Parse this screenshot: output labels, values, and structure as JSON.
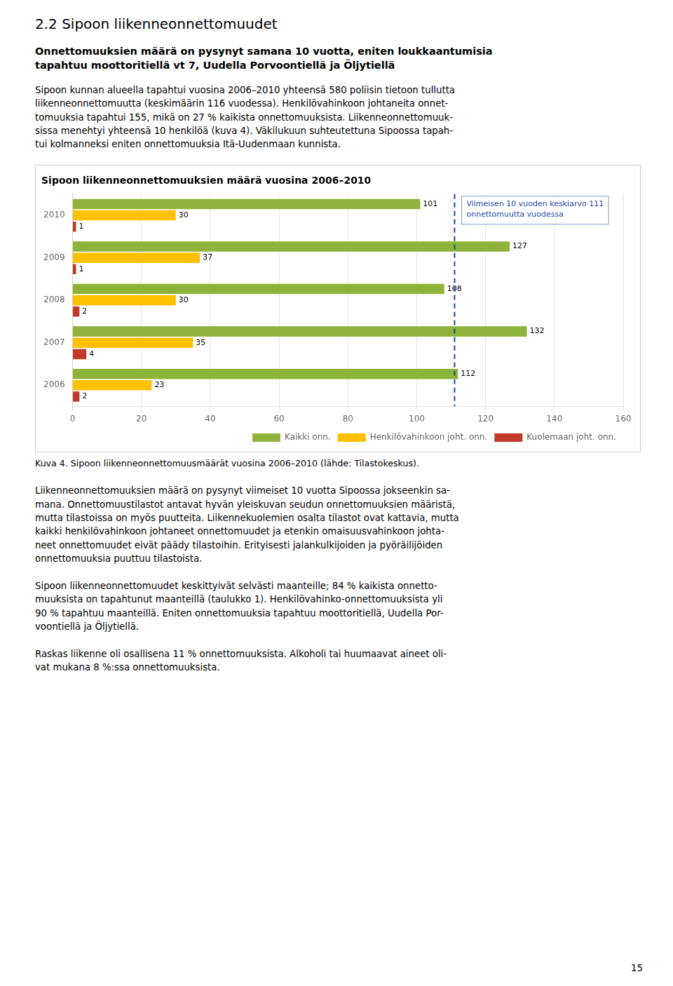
{
  "heading": "2.2 Sipoon liikenneonnettomuudet",
  "subheading": "Onnettomuuksien määrä on pysynyt samana 10 vuotta, eniten loukkaantumisia\ntapahtuu moottoritiellä vt 7, Uudella Porvoontiellä ja Öljytiellä",
  "paragraphs_before": [
    "Sipoon kunnan alueella tapahtui vuosina 2006–2010 yhteensä 580 poliisin tietoon tullutta\nliikenneonnettomuutta (keskimäärin 116 vuodessa). Henkilövahinkoon johtaneita onnet-\ntomuuksia tapahtui 155, mikä on 27 % kaikista onnettomuuksista. Liikenneonnettomuuk-\nsissa menehtyi yhteensä 10 henkilöä (kuva 4). Väkilukuun suhteutettuna Sipoossa tapah-\ntui kolmanneksi eniten onnettomuuksia Itä-Uudenmaan kunnista."
  ],
  "caption": "Kuva 4. Sipoon liikenneonnettomuusmäärät vuosina 2006–2010 (lähde: Tilastokeskus).",
  "paragraphs_after": [
    "Liikenneonnettomuuksien määrä on pysynyt viimeiset 10 vuotta Sipoossa jokseenkin sa-\nmana. Onnettomuustilastot antavat hyvän yleiskuvan seudun onnettomuuksien määristä,\nmutta tilastoissa on myös puutteita. Liikennekuolemien osalta tilastot ovat kattavia, mutta\nkaikki henkilövahinkoon johtaneet onnettomuudet ja etenkin omaisuusvahinkoon johta-\nneet onnettomuudet eivät päädy tilastoihin. Erityisesti jalankulkijoiden ja pyöräilijöiden\nonnettomuuksia puuttuu tilastoista.",
    "Sipoon liikenneonnettomuudet keskittyivät selvästi maanteille; 84 % kaikista onnetto-\nmuuksista on tapahtunut maanteillä (taulukko 1). Henkilövahinko-onnettomuuksista yli\n90 % tapahtuu maanteillä. Eniten onnettomuuksia tapahtuu moottoritiellä, Uudella Por-\nvoontiellä ja Öljytiellä.",
    "Raskas liikenne oli osallisena 11 % onnettomuuksista. Alkoholi tai huumaavat aineet oli-\nvat mukana 8 %:ssa onnettomuuksista."
  ],
  "page_number": "15",
  "chart_data": {
    "type": "bar",
    "orientation": "horizontal",
    "title": "Sipoon liikenneonnettomuuksien määrä vuosina 2006–2010",
    "categories": [
      "2010",
      "2009",
      "2008",
      "2007",
      "2006"
    ],
    "series": [
      {
        "name": "Kaikki onn.",
        "color": "#8db33a",
        "values": [
          101,
          127,
          108,
          132,
          112
        ]
      },
      {
        "name": "Henkilövahinkoon joht. onn.",
        "color": "#ffc000",
        "values": [
          30,
          37,
          30,
          35,
          23
        ]
      },
      {
        "name": "Kuolemaan joht. onn.",
        "color": "#c0392b",
        "values": [
          1,
          1,
          2,
          4,
          2
        ]
      }
    ],
    "xlim": [
      0,
      160
    ],
    "xticks": [
      0,
      20,
      40,
      60,
      80,
      100,
      120,
      140,
      160
    ],
    "grid": true,
    "legend": "lower right",
    "data_labels": true,
    "annotations": [
      {
        "type": "vline",
        "x": 111,
        "color": "#2244aa",
        "line_style": "dashed",
        "label": "Viimeisen 10 vuoden keskiarvo 111\nonnettomuutta vuodessa"
      }
    ]
  }
}
